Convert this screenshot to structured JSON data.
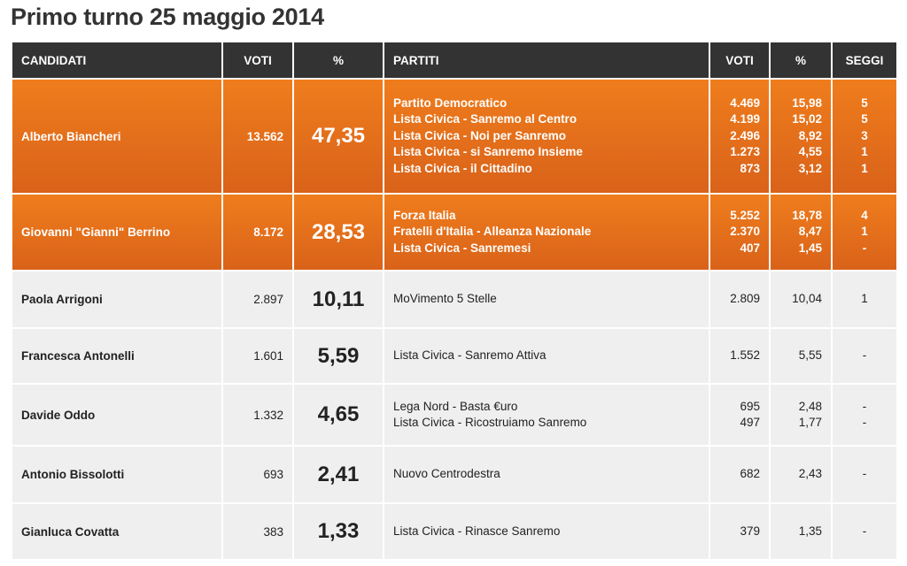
{
  "title": "Primo turno 25 maggio 2014",
  "table": {
    "headers": [
      "CANDIDATI",
      "VOTI",
      "%",
      "PARTITI",
      "VOTI",
      "%",
      "SEGGI"
    ],
    "rows": [
      {
        "candidate": "Alberto Biancheri",
        "votes": "13.562",
        "pct": "47,35",
        "parties": [
          {
            "name": "Partito Democratico",
            "votes": "4.469",
            "pct": "15,98",
            "seats": "5"
          },
          {
            "name": "Lista Civica - Sanremo al Centro",
            "votes": "4.199",
            "pct": "15,02",
            "seats": "5"
          },
          {
            "name": "Lista Civica - Noi per Sanremo",
            "votes": "2.496",
            "pct": "8,92",
            "seats": "3"
          },
          {
            "name": "Lista Civica - si Sanremo Insieme",
            "votes": "1.273",
            "pct": "4,55",
            "seats": "1"
          },
          {
            "name": "Lista Civica - il Cittadino",
            "votes": "873",
            "pct": "3,12",
            "seats": "1"
          }
        ]
      },
      {
        "candidate": "Giovanni \"Gianni\" Berrino",
        "votes": "8.172",
        "pct": "28,53",
        "parties": [
          {
            "name": "Forza Italia",
            "votes": "5.252",
            "pct": "18,78",
            "seats": "4"
          },
          {
            "name": "Fratelli d'Italia - Alleanza Nazionale",
            "votes": "2.370",
            "pct": "8,47",
            "seats": "1"
          },
          {
            "name": "Lista Civica - Sanremesi",
            "votes": "407",
            "pct": "1,45",
            "seats": "-"
          }
        ]
      },
      {
        "candidate": "Paola Arrigoni",
        "votes": "2.897",
        "pct": "10,11",
        "parties": [
          {
            "name": "MoVimento 5 Stelle",
            "votes": "2.809",
            "pct": "10,04",
            "seats": "1"
          }
        ]
      },
      {
        "candidate": "Francesca Antonelli",
        "votes": "1.601",
        "pct": "5,59",
        "parties": [
          {
            "name": "Lista Civica - Sanremo Attiva",
            "votes": "1.552",
            "pct": "5,55",
            "seats": "-"
          }
        ]
      },
      {
        "candidate": "Davide Oddo",
        "votes": "1.332",
        "pct": "4,65",
        "parties": [
          {
            "name": "Lega Nord - Basta €uro",
            "votes": "695",
            "pct": "2,48",
            "seats": "-"
          },
          {
            "name": "Lista Civica - Ricostruiamo Sanremo",
            "votes": "497",
            "pct": "1,77",
            "seats": "-"
          }
        ]
      },
      {
        "candidate": "Antonio Bissolotti",
        "votes": "693",
        "pct": "2,41",
        "parties": [
          {
            "name": "Nuovo Centrodestra",
            "votes": "682",
            "pct": "2,43",
            "seats": "-"
          }
        ]
      },
      {
        "candidate": "Gianluca Covatta",
        "votes": "383",
        "pct": "1,33",
        "parties": [
          {
            "name": "Lista Civica - Rinasce Sanremo",
            "votes": "379",
            "pct": "1,35",
            "seats": "-"
          }
        ]
      }
    ]
  }
}
